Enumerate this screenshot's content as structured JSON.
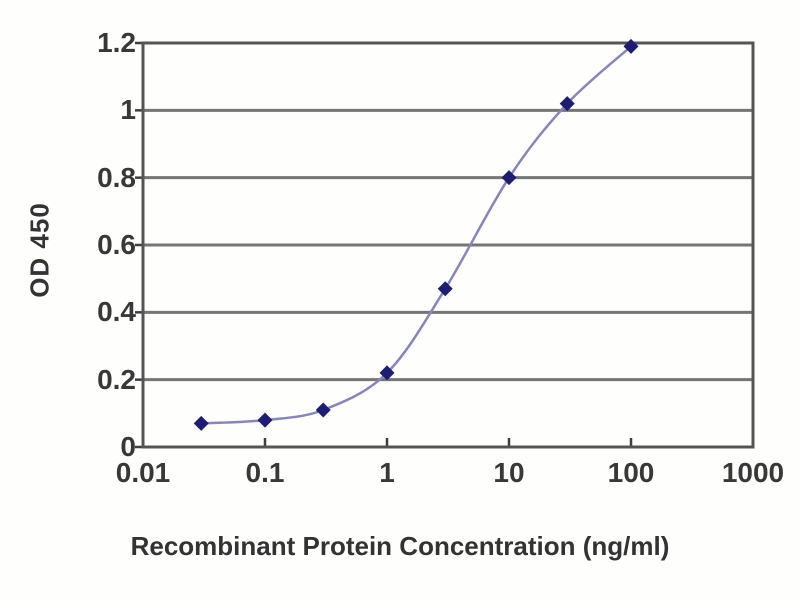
{
  "chart_data": {
    "type": "line",
    "title": "",
    "xlabel": "Recombinant Protein Concentration (ng/ml)",
    "ylabel": "OD 450",
    "x_scale": "log",
    "xlim": [
      0.01,
      1000
    ],
    "ylim": [
      0,
      1.2
    ],
    "x": [
      0.03,
      0.1,
      0.3,
      1,
      3,
      10,
      30,
      100
    ],
    "series": [
      {
        "name": "OD 450",
        "values": [
          0.07,
          0.08,
          0.11,
          0.22,
          0.47,
          0.8,
          1.02,
          1.19
        ]
      }
    ],
    "x_ticks": [
      0.01,
      0.1,
      1,
      10,
      100,
      1000
    ],
    "x_tick_labels": [
      "0.01",
      "0.1",
      "1",
      "10",
      "100",
      "1000"
    ],
    "y_ticks": [
      0,
      0.2,
      0.4,
      0.6,
      0.8,
      1,
      1.2
    ],
    "y_tick_labels": [
      "0",
      "0.2",
      "0.4",
      "0.6",
      "0.8",
      "1",
      "1.2"
    ],
    "grid": "horizontal",
    "legend": false,
    "marker_shape": "diamond",
    "colors": {
      "line": "#8585c0",
      "marker": "#1d1d73",
      "grid": "#757575",
      "frame": "#555558",
      "tick": "#3f3f3f",
      "text": "#383838",
      "background": "#ffffff"
    }
  }
}
